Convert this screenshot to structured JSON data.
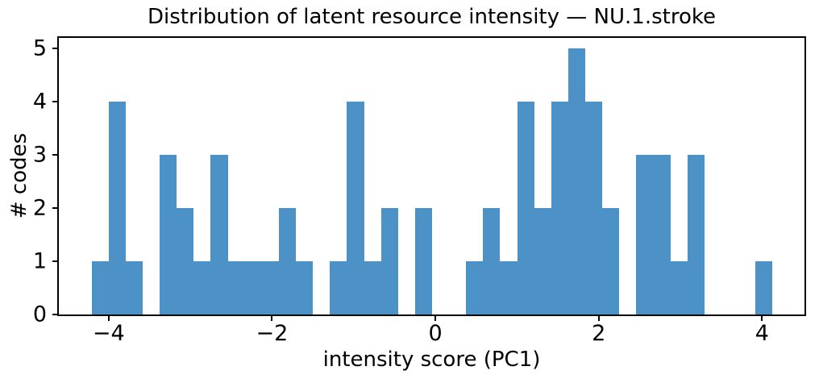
{
  "chart_data": {
    "type": "bar",
    "subtype": "histogram",
    "title": "Distribution of latent resource intensity — NU.1.stroke",
    "xlabel": "intensity score (PC1)",
    "ylabel": "# codes",
    "bar_color": "#4d92c6",
    "axis_color": "#000000",
    "background_color": "#ffffff",
    "bin_start": -4.21,
    "bin_width": 0.2085,
    "counts": [
      1,
      4,
      1,
      0,
      3,
      2,
      1,
      3,
      1,
      1,
      1,
      2,
      1,
      0,
      1,
      4,
      1,
      2,
      0,
      2,
      0,
      0,
      1,
      2,
      1,
      4,
      2,
      4,
      5,
      4,
      2,
      0,
      3,
      3,
      1,
      3,
      0,
      0,
      0,
      1
    ],
    "xlim": [
      -4.63,
      4.54
    ],
    "ylim": [
      0,
      5.22
    ],
    "xticks": [
      -4,
      -2,
      0,
      2,
      4
    ],
    "xtick_labels": [
      "−4",
      "−2",
      "0",
      "2",
      "4"
    ],
    "yticks": [
      0,
      1,
      2,
      3,
      4,
      5
    ],
    "ytick_labels": [
      "0",
      "1",
      "2",
      "3",
      "4",
      "5"
    ],
    "grid": false,
    "legend": "none"
  }
}
